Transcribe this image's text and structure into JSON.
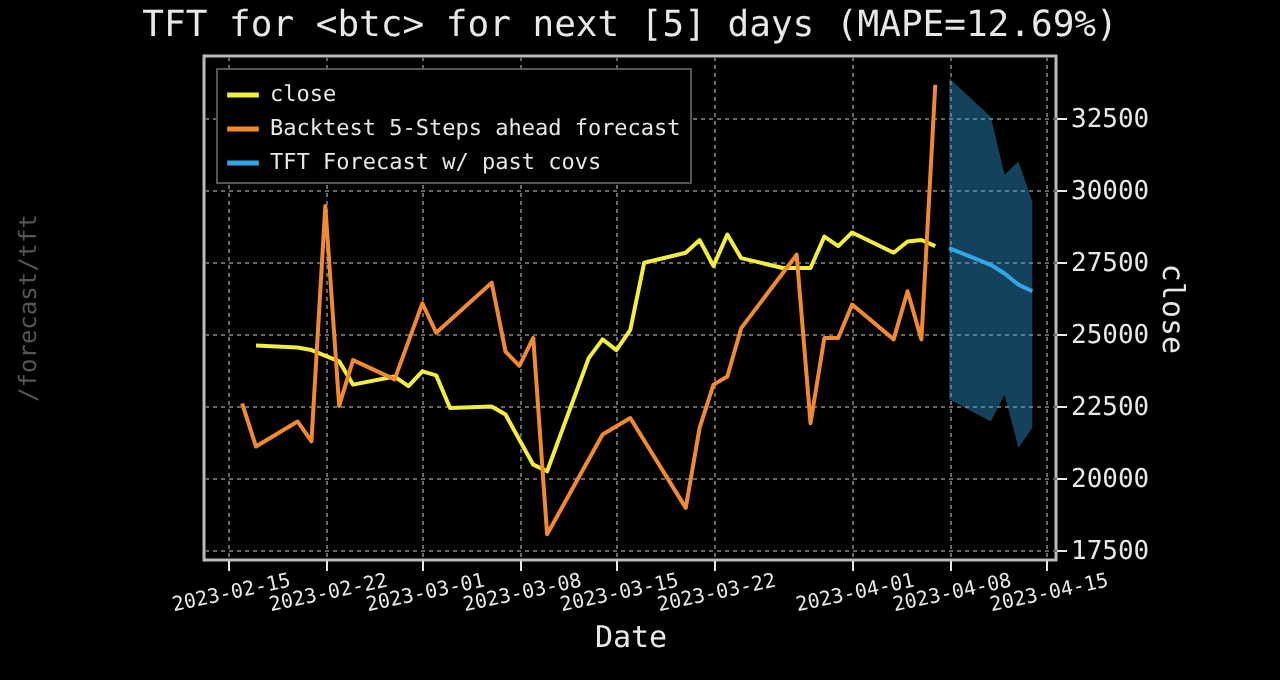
{
  "chart_data": {
    "type": "line",
    "title": "TFT for <btc> for next [5] days (MAPE=12.69%)",
    "xlabel": "Date",
    "ylabel": "close",
    "annotations": [
      "/forecast/tft"
    ],
    "xlim": [
      "2023-02-13T06:00",
      "2023-04-15T17:00"
    ],
    "xticks": [
      "2023-02-15",
      "2023-02-22",
      "2023-03-01",
      "2023-03-08",
      "2023-03-15",
      "2023-03-22",
      "2023-04-01",
      "2023-04-08",
      "2023-04-15"
    ],
    "ylim": [
      17150,
      34650
    ],
    "yticks": [
      17500,
      20000,
      22500,
      25000,
      27500,
      30000,
      32500
    ],
    "grid": true,
    "legend": "top left",
    "line_style": "solid",
    "marker": "none",
    "series": [
      {
        "name": "close",
        "color": "#f2ee3c",
        "x": [
          "2023-02-17",
          "2023-02-20",
          "2023-02-21",
          "2023-02-23",
          "2023-02-24",
          "2023-02-27",
          "2023-02-28",
          "2023-03-01",
          "2023-03-02",
          "2023-03-03",
          "2023-03-06",
          "2023-03-07",
          "2023-03-09",
          "2023-03-10",
          "2023-03-13",
          "2023-03-14",
          "2023-03-15",
          "2023-03-16",
          "2023-03-17",
          "2023-03-20",
          "2023-03-21",
          "2023-03-22",
          "2023-03-23",
          "2023-03-24",
          "2023-03-27",
          "2023-03-29",
          "2023-03-30",
          "2023-03-31",
          "2023-04-01",
          "2023-04-04",
          "2023-04-05",
          "2023-04-06",
          "2023-04-07"
        ],
        "values": [
          24600,
          24530,
          24440,
          24050,
          23240,
          23520,
          23190,
          23700,
          23560,
          22430,
          22480,
          22200,
          20460,
          20230,
          24160,
          24810,
          24440,
          25140,
          27470,
          27820,
          28260,
          27360,
          28450,
          27630,
          27290,
          27290,
          28380,
          28050,
          28520,
          27820,
          28210,
          28260,
          28050
        ]
      },
      {
        "name": "Backtest 5-Steps ahead forecast",
        "color": "#ef8a30",
        "x": [
          "2023-02-16",
          "2023-02-17",
          "2023-02-20",
          "2023-02-21",
          "2023-02-22",
          "2023-02-23",
          "2023-02-24",
          "2023-02-27",
          "2023-03-01",
          "2023-03-02",
          "2023-03-06",
          "2023-03-07",
          "2023-03-08",
          "2023-03-09",
          "2023-03-10",
          "2023-03-14",
          "2023-03-16",
          "2023-03-20",
          "2023-03-21",
          "2023-03-22",
          "2023-03-23",
          "2023-03-24",
          "2023-03-28",
          "2023-03-29",
          "2023-03-30",
          "2023-03-31",
          "2023-04-01",
          "2023-04-04",
          "2023-04-05",
          "2023-04-06",
          "2023-04-07"
        ],
        "values": [
          22590,
          21090,
          21960,
          21270,
          29440,
          22500,
          24090,
          23420,
          26060,
          25040,
          26780,
          24390,
          23890,
          24860,
          18040,
          21510,
          22080,
          18960,
          21740,
          23240,
          23520,
          25200,
          27750,
          21900,
          24860,
          24860,
          26020,
          24810,
          26480,
          24810,
          33650
        ]
      },
      {
        "name": "TFT Forecast w/ past covs",
        "color": "#33a6e6",
        "x": [
          "2023-04-08",
          "2023-04-11",
          "2023-04-12",
          "2023-04-13",
          "2023-04-14"
        ],
        "values": [
          27980,
          27400,
          27100,
          26710,
          26480
        ],
        "lower": [
          22730,
          21960,
          22890,
          21040,
          21740
        ],
        "upper": [
          33880,
          32540,
          30530,
          30990,
          29600
        ]
      }
    ]
  }
}
